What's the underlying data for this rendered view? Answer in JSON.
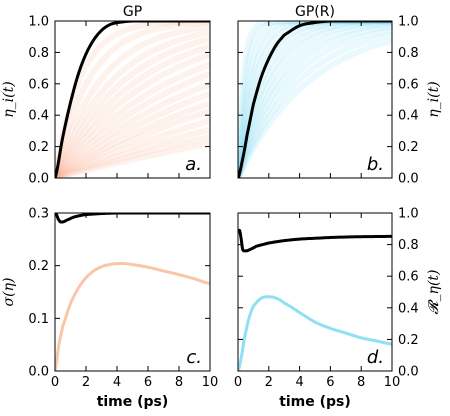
{
  "chart_data": [
    {
      "panel": "a.",
      "type": "line",
      "title": "GP",
      "ylabel": "η_i(t)",
      "ylabel_side": "left",
      "xlabel": "",
      "xlim": [
        0,
        10
      ],
      "ylim": [
        0,
        1
      ],
      "xticks": [
        0,
        2,
        4,
        6,
        8,
        10
      ],
      "yticks": [
        "0.0",
        "0.2",
        "0.4",
        "0.6",
        "0.8",
        "1.0"
      ],
      "ensemble_color": "#f7b08c",
      "ensemble_note": "many faint individual trajectories η_i(t) rising from 0",
      "ensemble_time_constants_ps": [
        1.6,
        2.2,
        3.0,
        3.8,
        4.6,
        5.5,
        6.5,
        7.8,
        9.2,
        11,
        13,
        15.5,
        18,
        22,
        27,
        33,
        40
      ],
      "series": [
        {
          "color": "#000000",
          "x": [
            0,
            0.5,
            1,
            1.5,
            2,
            2.5,
            3,
            3.5,
            4,
            5,
            6,
            7,
            8,
            9,
            10
          ],
          "y": [
            0,
            0.26,
            0.48,
            0.66,
            0.79,
            0.88,
            0.94,
            0.975,
            0.99,
            1.0,
            1.0,
            1.0,
            1.0,
            1.0,
            1.0
          ]
        }
      ]
    },
    {
      "panel": "b.",
      "type": "line",
      "title": "GP(R)",
      "ylabel": "η_i(t)",
      "ylabel_side": "right",
      "xlabel": "",
      "xlim": [
        0,
        10
      ],
      "ylim": [
        0,
        1
      ],
      "xticks": [
        0,
        2,
        4,
        6,
        8,
        10
      ],
      "yticks": [
        "0.0",
        "0.2",
        "0.4",
        "0.6",
        "0.8",
        "1.0"
      ],
      "ensemble_color": "#7fd8f0",
      "ensemble_note": "many faint individual trajectories η_i(t) rising from 0",
      "ensemble_time_constants_ps": [
        0.35,
        0.5,
        0.7,
        0.9,
        1.1,
        1.35,
        1.6,
        1.9,
        2.2,
        2.6,
        3.0,
        3.5,
        4.1,
        4.8
      ],
      "series": [
        {
          "color": "#000000",
          "x": [
            0,
            0.3,
            0.6,
            1,
            1.5,
            2,
            2.5,
            3,
            4,
            5,
            6,
            7,
            8,
            9,
            10
          ],
          "y": [
            0,
            0.12,
            0.28,
            0.47,
            0.64,
            0.76,
            0.85,
            0.91,
            0.97,
            0.99,
            1.0,
            1.0,
            1.0,
            1.0,
            1.0
          ]
        }
      ]
    },
    {
      "panel": "c.",
      "type": "line",
      "title": "",
      "ylabel": "σ(η)",
      "ylabel_side": "left",
      "xlabel": "time (ps)",
      "xlim": [
        0,
        10
      ],
      "ylim": [
        0,
        0.3
      ],
      "xticks": [
        0,
        2,
        4,
        6,
        8,
        10
      ],
      "yticks": [
        "0.0",
        "0.1",
        "0.2",
        "0.3"
      ],
      "axis": "left",
      "series": [
        {
          "color": "#000000",
          "x": [
            0,
            0.1,
            0.2,
            0.35,
            0.5,
            0.8,
            1.2,
            1.6,
            2,
            2.5,
            3,
            4,
            5,
            6,
            7,
            8,
            9,
            10
          ],
          "y": [
            0.3,
            0.297,
            0.289,
            0.283,
            0.283,
            0.287,
            0.292,
            0.295,
            0.297,
            0.298,
            0.299,
            0.3,
            0.3,
            0.3,
            0.3,
            0.3,
            0.3,
            0.3
          ]
        },
        {
          "color": "#f9c6a8",
          "x": [
            0,
            0.25,
            0.5,
            1,
            1.5,
            2,
            2.5,
            3,
            3.5,
            4,
            4.5,
            5,
            6,
            7,
            8,
            9,
            10
          ],
          "y": [
            0,
            0.05,
            0.085,
            0.128,
            0.157,
            0.177,
            0.19,
            0.198,
            0.202,
            0.204,
            0.204,
            0.202,
            0.197,
            0.19,
            0.183,
            0.175,
            0.166
          ]
        }
      ]
    },
    {
      "panel": "d.",
      "type": "line",
      "title": "",
      "ylabel": "𝓡_η(t)",
      "ylabel_side": "right",
      "xlabel": "time (ps)",
      "xlim": [
        0,
        10
      ],
      "ylim": [
        0,
        1
      ],
      "xticks": [
        0,
        2,
        4,
        6,
        8,
        10
      ],
      "yticks": [
        "0.0",
        "0.2",
        "0.4",
        "0.6",
        "0.8",
        "1.0"
      ],
      "axis": "right",
      "series": [
        {
          "color": "#000000",
          "x": [
            0,
            0.1,
            0.2,
            0.3,
            0.5,
            0.8,
            1.2,
            2,
            3,
            4,
            5,
            6,
            7,
            8,
            9,
            10
          ],
          "y": [
            0.88,
            0.89,
            0.84,
            0.77,
            0.76,
            0.77,
            0.79,
            0.81,
            0.825,
            0.835,
            0.84,
            0.845,
            0.848,
            0.85,
            0.851,
            0.852
          ]
        },
        {
          "color": "#8fe0f3",
          "x": [
            0,
            0.2,
            0.4,
            0.7,
            1,
            1.5,
            2,
            2.5,
            3,
            4,
            5,
            6,
            7,
            8,
            9,
            10
          ],
          "y": [
            0,
            0.08,
            0.2,
            0.33,
            0.41,
            0.46,
            0.47,
            0.46,
            0.43,
            0.37,
            0.31,
            0.27,
            0.24,
            0.21,
            0.19,
            0.17
          ]
        }
      ]
    }
  ]
}
